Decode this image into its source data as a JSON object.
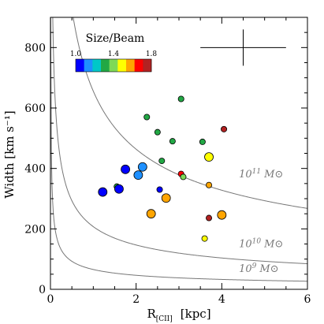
{
  "chart_data": {
    "type": "scatter",
    "title": "",
    "xlabel": "R[CII] [kpc]",
    "xlabel_main": "R",
    "xlabel_sub": "[CII]",
    "xlabel_unit": "[kpc]",
    "ylabel": "Width [km s⁻¹]",
    "xlim": [
      0,
      6
    ],
    "ylim": [
      0,
      900
    ],
    "x_ticks": [
      "0",
      "2",
      "4",
      "6"
    ],
    "y_ticks": [
      "0",
      "200",
      "400",
      "600",
      "800"
    ],
    "x_tick_values": [
      0,
      2,
      4,
      6
    ],
    "y_tick_values": [
      0,
      200,
      400,
      600,
      800
    ],
    "colorbar": {
      "title": "Size/Beam",
      "min_label": "1.0",
      "mid_label": "1.4",
      "max_label": "1.8",
      "range": [
        1.0,
        1.8
      ],
      "colors": [
        "#0000ff",
        "#1e90ff",
        "#00c8c8",
        "#22a845",
        "#7ed957",
        "#ffff00",
        "#ffa500",
        "#ff0000",
        "#b22222"
      ]
    },
    "error_bar": {
      "x": 4.5,
      "y": 800,
      "dx": 1.0,
      "dy": 60
    },
    "curves": [
      {
        "label_base": "10",
        "label_exp": "11",
        "label_unit": "M⊙",
        "mass": 100000000000.0,
        "label_x": 4.4,
        "label_y": 370
      },
      {
        "label_base": "10",
        "label_exp": "10",
        "label_unit": "M⊙",
        "mass": 10000000000.0,
        "label_x": 4.4,
        "label_y": 140
      },
      {
        "label_base": "10",
        "label_exp": "9",
        "label_unit": "M⊙",
        "mass": 1000000000.0,
        "label_x": 4.4,
        "label_y": 58
      }
    ],
    "points": [
      {
        "x": 1.22,
        "y": 322,
        "color": "#0000ff",
        "big": true
      },
      {
        "x": 1.55,
        "y": 340,
        "color": "#22a845",
        "big": false
      },
      {
        "x": 1.6,
        "y": 332,
        "color": "#0000ff",
        "big": true
      },
      {
        "x": 1.75,
        "y": 397,
        "color": "#0000ff",
        "big": true
      },
      {
        "x": 2.05,
        "y": 378,
        "color": "#1e90ff",
        "big": true
      },
      {
        "x": 2.15,
        "y": 405,
        "color": "#1e90ff",
        "big": true
      },
      {
        "x": 2.25,
        "y": 570,
        "color": "#22a845",
        "big": false
      },
      {
        "x": 2.35,
        "y": 250,
        "color": "#ffa500",
        "big": true
      },
      {
        "x": 2.5,
        "y": 520,
        "color": "#22a845",
        "big": false
      },
      {
        "x": 2.55,
        "y": 330,
        "color": "#0000ff",
        "big": false
      },
      {
        "x": 2.6,
        "y": 425,
        "color": "#22a845",
        "big": false
      },
      {
        "x": 2.7,
        "y": 302,
        "color": "#ffa500",
        "big": true
      },
      {
        "x": 2.85,
        "y": 490,
        "color": "#22a845",
        "big": false
      },
      {
        "x": 3.05,
        "y": 630,
        "color": "#22a845",
        "big": false
      },
      {
        "x": 3.05,
        "y": 382,
        "color": "#ff0000",
        "big": false
      },
      {
        "x": 3.1,
        "y": 372,
        "color": "#7ed957",
        "big": false
      },
      {
        "x": 3.55,
        "y": 488,
        "color": "#22a845",
        "big": false
      },
      {
        "x": 3.6,
        "y": 168,
        "color": "#ffff00",
        "big": false
      },
      {
        "x": 3.7,
        "y": 438,
        "color": "#ffff00",
        "big": true
      },
      {
        "x": 3.7,
        "y": 345,
        "color": "#ffa500",
        "big": false
      },
      {
        "x": 3.7,
        "y": 236,
        "color": "#b22222",
        "big": false
      },
      {
        "x": 4.0,
        "y": 246,
        "color": "#ffa500",
        "big": true
      },
      {
        "x": 4.05,
        "y": 530,
        "color": "#b22222",
        "big": false
      }
    ]
  }
}
